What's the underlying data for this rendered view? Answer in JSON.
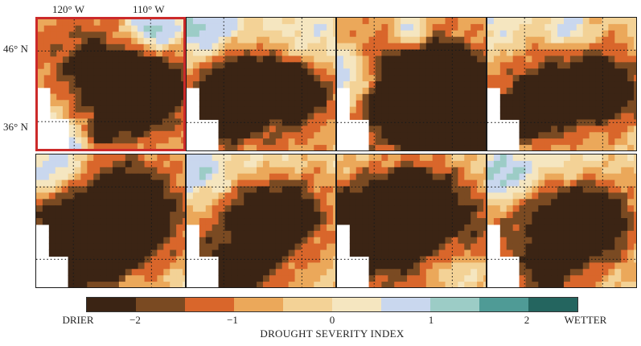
{
  "map": {
    "longitude_labels": [
      "120° W",
      "110° W"
    ],
    "latitude_labels": [
      "46° N",
      "36° N"
    ],
    "panel_count": 8,
    "selected_panel": 1
  },
  "legend": {
    "title": "DROUGHT SEVERITY INDEX",
    "end_left": "DRIER",
    "end_right": "WETTER",
    "ticks": [
      "−2",
      "−1",
      "0",
      "1",
      "2"
    ],
    "colors": [
      "#3b2414",
      "#7a4a22",
      "#d9662b",
      "#eba85a",
      "#f3d296",
      "#f5e6c0",
      "#c9d7ee",
      "#9cccc6",
      "#4f9b96",
      "#24655f",
      "#153c37"
    ]
  }
}
